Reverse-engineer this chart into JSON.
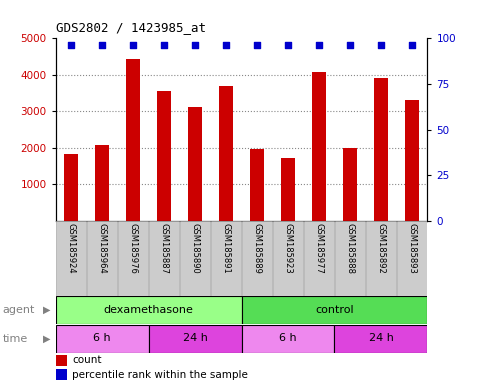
{
  "title": "GDS2802 / 1423985_at",
  "samples": [
    "GSM185924",
    "GSM185964",
    "GSM185976",
    "GSM185887",
    "GSM185890",
    "GSM185891",
    "GSM185889",
    "GSM185923",
    "GSM185977",
    "GSM185888",
    "GSM185892",
    "GSM185893"
  ],
  "counts": [
    1830,
    2090,
    4440,
    3550,
    3120,
    3700,
    1980,
    1720,
    4070,
    2000,
    3910,
    3300
  ],
  "bar_color": "#cc0000",
  "dot_color": "#0000cc",
  "ylim_left": [
    0,
    5000
  ],
  "ylim_right": [
    0,
    100
  ],
  "yticks_left": [
    1000,
    2000,
    3000,
    4000,
    5000
  ],
  "yticks_right": [
    0,
    25,
    50,
    75,
    100
  ],
  "agent_groups": [
    {
      "label": "dexamethasone",
      "start": 0,
      "end": 6,
      "color": "#99ff88"
    },
    {
      "label": "control",
      "start": 6,
      "end": 12,
      "color": "#55dd55"
    }
  ],
  "time_groups": [
    {
      "label": "6 h",
      "start": 0,
      "end": 3,
      "color": "#ee88ee"
    },
    {
      "label": "24 h",
      "start": 3,
      "end": 6,
      "color": "#dd44dd"
    },
    {
      "label": "6 h",
      "start": 6,
      "end": 9,
      "color": "#ee88ee"
    },
    {
      "label": "24 h",
      "start": 9,
      "end": 12,
      "color": "#dd44dd"
    }
  ],
  "tick_label_color_left": "#cc0000",
  "tick_label_color_right": "#0000cc",
  "grid_color": "#888888",
  "label_box_color": "#cccccc",
  "label_box_edge": "#aaaaaa"
}
